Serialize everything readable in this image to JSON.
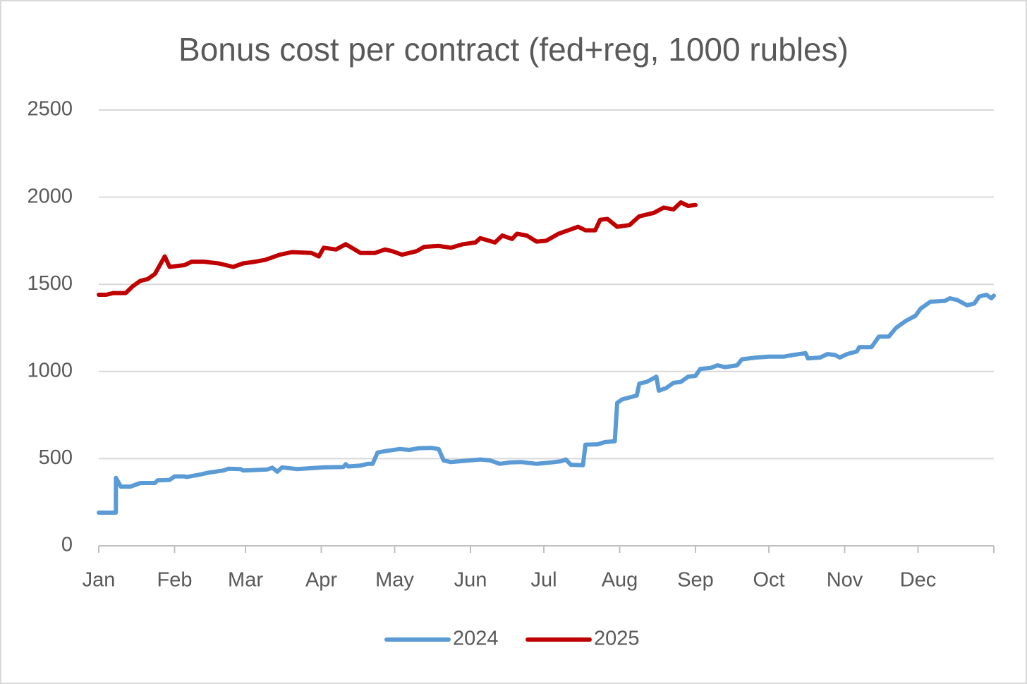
{
  "chart_data": {
    "type": "line",
    "title": "Bonus cost per contract (fed+reg, 1000 rubles)",
    "xlim": [
      0,
      366
    ],
    "xticks": [
      {
        "value": 0,
        "label": "Jan"
      },
      {
        "value": 31,
        "label": "Feb"
      },
      {
        "value": 60,
        "label": "Mar"
      },
      {
        "value": 91,
        "label": "Apr"
      },
      {
        "value": 121,
        "label": "May"
      },
      {
        "value": 152,
        "label": "Jun"
      },
      {
        "value": 182,
        "label": "Jul"
      },
      {
        "value": 213,
        "label": "Aug"
      },
      {
        "value": 244,
        "label": "Sep"
      },
      {
        "value": 274,
        "label": "Oct"
      },
      {
        "value": 305,
        "label": "Nov"
      },
      {
        "value": 335,
        "label": "Dec"
      }
    ],
    "ylim": [
      0,
      2500
    ],
    "yticks": [
      0,
      500,
      1000,
      1500,
      2000,
      2500
    ],
    "grid": true,
    "legend": "bottom",
    "series": [
      {
        "name": "2024",
        "color": "#5b9bd5",
        "x": [
          0,
          7,
          7,
          9,
          13,
          17,
          23,
          24,
          29,
          31,
          35,
          36,
          42,
          45,
          51,
          53,
          58,
          59,
          69,
          71,
          73,
          75,
          78,
          81,
          92,
          100,
          101,
          102,
          107,
          110,
          112,
          114,
          118,
          123,
          127,
          131,
          136,
          139,
          141,
          144,
          150,
          156,
          160,
          164,
          168,
          173,
          179,
          185,
          189,
          191,
          193,
          198,
          199,
          204,
          207,
          211,
          212,
          214,
          220,
          221,
          224,
          228,
          229,
          232,
          235,
          238,
          241,
          244,
          246,
          250,
          253,
          256,
          261,
          263,
          269,
          274,
          280,
          284,
          289,
          290,
          295,
          298,
          301,
          303,
          306,
          310,
          311,
          316,
          319,
          323,
          326,
          330,
          334,
          336,
          340,
          346,
          348,
          351,
          355,
          358,
          360,
          363,
          365,
          366
        ],
        "values": [
          190,
          190,
          390,
          340,
          340,
          360,
          360,
          375,
          378,
          398,
          398,
          395,
          410,
          420,
          432,
          442,
          440,
          432,
          438,
          448,
          425,
          450,
          445,
          440,
          450,
          452,
          468,
          455,
          460,
          470,
          470,
          535,
          545,
          555,
          550,
          560,
          562,
          555,
          490,
          480,
          488,
          495,
          490,
          470,
          478,
          480,
          470,
          478,
          485,
          495,
          465,
          462,
          580,
          582,
          595,
          600,
          820,
          840,
          862,
          930,
          940,
          970,
          890,
          905,
          935,
          940,
          970,
          975,
          1015,
          1020,
          1035,
          1025,
          1035,
          1070,
          1080,
          1085,
          1085,
          1095,
          1105,
          1075,
          1080,
          1100,
          1095,
          1080,
          1100,
          1115,
          1140,
          1140,
          1200,
          1200,
          1250,
          1290,
          1320,
          1360,
          1400,
          1405,
          1420,
          1410,
          1380,
          1390,
          1430,
          1440,
          1420,
          1435
        ]
      },
      {
        "name": "2025",
        "color": "#c00000",
        "x": [
          0,
          3,
          6,
          11,
          14,
          17,
          20,
          23,
          27,
          29,
          35,
          38,
          43,
          49,
          55,
          59,
          64,
          68,
          74,
          79,
          87,
          90,
          92,
          97,
          101,
          107,
          113,
          117,
          120,
          124,
          130,
          133,
          139,
          144,
          149,
          154,
          156,
          162,
          165,
          169,
          171,
          175,
          179,
          183,
          188,
          192,
          196,
          199,
          203,
          205,
          208,
          212,
          217,
          221,
          227,
          231,
          235,
          238,
          241,
          244
        ],
        "values": [
          1440,
          1440,
          1450,
          1450,
          1490,
          1520,
          1530,
          1560,
          1660,
          1600,
          1610,
          1630,
          1630,
          1620,
          1600,
          1620,
          1630,
          1640,
          1670,
          1685,
          1680,
          1660,
          1710,
          1700,
          1730,
          1680,
          1680,
          1700,
          1690,
          1670,
          1690,
          1715,
          1720,
          1710,
          1730,
          1740,
          1765,
          1740,
          1780,
          1760,
          1790,
          1780,
          1745,
          1750,
          1790,
          1810,
          1830,
          1810,
          1810,
          1870,
          1875,
          1830,
          1840,
          1890,
          1910,
          1940,
          1930,
          1970,
          1950,
          1955
        ]
      }
    ]
  }
}
